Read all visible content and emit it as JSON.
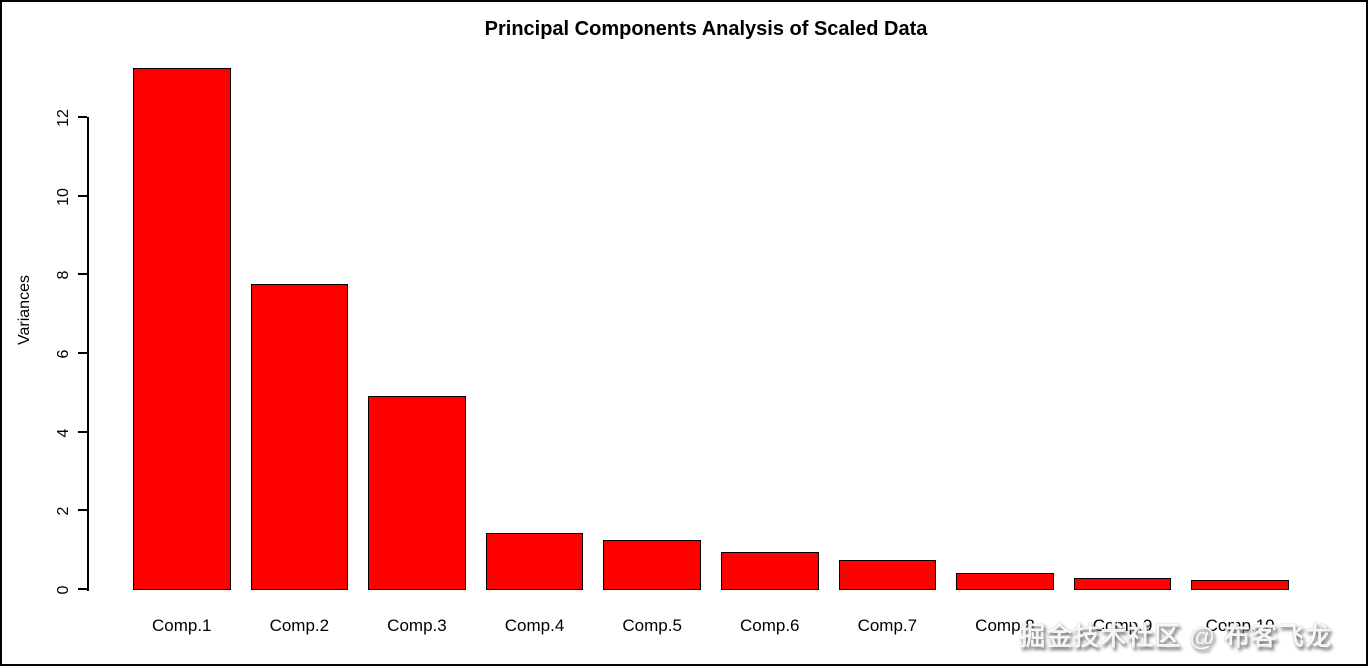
{
  "figure": {
    "watermark": "掘金技术社区 @ 布客飞龙"
  },
  "chart_data": {
    "type": "bar",
    "title": "Principal Components Analysis of Scaled Data",
    "xlabel": "",
    "ylabel": "Variances",
    "categories": [
      "Comp.1",
      "Comp.2",
      "Comp.3",
      "Comp.4",
      "Comp.5",
      "Comp.6",
      "Comp.7",
      "Comp.8",
      "Comp.9",
      "Comp.10"
    ],
    "values": [
      13.25,
      7.76,
      4.91,
      1.43,
      1.25,
      0.94,
      0.74,
      0.41,
      0.28,
      0.23
    ],
    "yticks": [
      0,
      2,
      4,
      6,
      8,
      10,
      12
    ],
    "ylim": [
      0,
      13.4
    ],
    "grid": false,
    "legend": null,
    "bar_color": "#FF0000",
    "bar_border_color": "#000000",
    "axis_color": "#000000",
    "background_color": "#FFFFFF"
  }
}
